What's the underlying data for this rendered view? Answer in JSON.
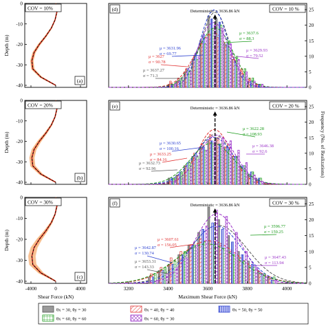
{
  "figure": {
    "left_xlabel": "Shear Force (kN)",
    "left_ylabel": "Depth (m)",
    "right_xlabel": "Maximum Shear Force (kN)",
    "right_ylabel": "Frequency (No. of Realizations)"
  },
  "legend": [
    {
      "label": "θx = 30, θy = 30",
      "color": "#555555",
      "fill": "#999999",
      "pattern": "solid"
    },
    {
      "label": "θx = 40, θy = 40",
      "color": "#e03030",
      "fill": "#ffffff",
      "pattern": "diag-right"
    },
    {
      "label": "θx = 50, θy = 50",
      "color": "#2a3fd0",
      "fill": "#b9bff3",
      "pattern": "vertical"
    },
    {
      "label": "θx = 60, θy = 60",
      "color": "#1a9a1a",
      "fill": "#ffffff",
      "pattern": "grid"
    },
    {
      "label": "θx = 60, θy = 30",
      "color": "#9a30c8",
      "fill": "#ffffff",
      "pattern": "cross"
    }
  ],
  "chart_data": [
    {
      "type": "line",
      "panel": "(a)",
      "cov_label": "COV = 10%",
      "xlim": [
        -5000,
        5000
      ],
      "ylim": [
        -41,
        0
      ],
      "xticks": [
        -4000,
        0,
        4000
      ],
      "yticks": [
        0,
        -10,
        -20,
        -30,
        -40
      ],
      "depth": [
        0,
        -4,
        -8,
        -12,
        -16,
        -20,
        -24,
        -28,
        -32,
        -36,
        -40
      ],
      "mean_shear": [
        0,
        200,
        -100,
        -700,
        -1600,
        -2650,
        -3500,
        -3850,
        -3700,
        -2400,
        0
      ]
    },
    {
      "type": "bar",
      "panel": "(d)",
      "cov_label": "COV = 10 %",
      "deterministic": 3636.86,
      "deterministic_label": "Deterministic = 3636.86 kN",
      "xlim": [
        3100,
        4100
      ],
      "ylim": [
        0,
        27
      ],
      "xticks": [
        3200,
        3400,
        3600,
        3800,
        4000
      ],
      "yticks": [
        0,
        5,
        10,
        15,
        20,
        25
      ],
      "annotations": [
        {
          "series": 2,
          "mu": "μ = 3631.96",
          "sigma": "σ = 69.77"
        },
        {
          "series": 3,
          "mu": "μ = 3637.6",
          "sigma": "σ = 88.3"
        },
        {
          "series": 1,
          "mu": "μ = 3627",
          "sigma": "σ = 90.78"
        },
        {
          "series": 4,
          "mu": "μ = 3629.93",
          "sigma": "σ = 79.52"
        },
        {
          "series": 0,
          "mu": "μ = 3637.27",
          "sigma": "σ = 71.3"
        }
      ],
      "bins": [
        3400,
        3440,
        3480,
        3520,
        3560,
        3600,
        3640,
        3680,
        3720,
        3760,
        3800,
        3840
      ],
      "series": [
        {
          "name": "θx = 30, θy = 30",
          "mean": 3637.27,
          "sd": 71.3,
          "values": [
            1,
            2,
            5,
            9,
            15,
            23,
            22,
            14,
            9,
            5,
            2,
            1
          ]
        },
        {
          "name": "θx = 40, θy = 40",
          "mean": 3627,
          "sd": 90.78,
          "values": [
            2,
            3,
            6,
            10,
            14,
            17,
            16,
            13,
            9,
            6,
            3,
            1
          ]
        },
        {
          "name": "θx = 50, θy = 50",
          "mean": 3631.96,
          "sd": 69.77,
          "values": [
            1,
            2,
            6,
            11,
            17,
            22,
            21,
            14,
            8,
            4,
            2,
            1
          ]
        },
        {
          "name": "θx = 60, θy = 60",
          "mean": 3637.6,
          "sd": 88.3,
          "values": [
            1,
            3,
            5,
            9,
            14,
            19,
            20,
            15,
            10,
            6,
            3,
            1
          ]
        },
        {
          "name": "θx = 60, θy = 30",
          "mean": 3629.93,
          "sd": 79.52,
          "values": [
            1,
            2,
            5,
            10,
            16,
            20,
            19,
            14,
            9,
            5,
            2,
            1
          ]
        }
      ]
    },
    {
      "type": "line",
      "panel": "(b)",
      "cov_label": "COV = 20%",
      "xlim": [
        -5000,
        5000
      ],
      "ylim": [
        -41,
        0
      ],
      "xticks": [
        -4000,
        0,
        4000
      ],
      "yticks": [
        0,
        -10,
        -20,
        -30,
        -40
      ],
      "depth": [
        0,
        -4,
        -8,
        -12,
        -16,
        -20,
        -24,
        -28,
        -32,
        -36,
        -40
      ],
      "mean_shear": [
        0,
        200,
        -100,
        -700,
        -1600,
        -2650,
        -3500,
        -3850,
        -3700,
        -2400,
        0
      ]
    },
    {
      "type": "bar",
      "panel": "(e)",
      "cov_label": "COV = 20 %",
      "deterministic": 3636.86,
      "deterministic_label": "Deterministic = 3636.86 kN",
      "xlim": [
        3100,
        4100
      ],
      "ylim": [
        0,
        27
      ],
      "xticks": [
        3200,
        3400,
        3600,
        3800,
        4000
      ],
      "yticks": [
        0,
        5,
        10,
        15,
        20,
        25
      ],
      "annotations": [
        {
          "series": 2,
          "mu": "μ = 3630.65",
          "sigma": "σ = 100.16"
        },
        {
          "series": 3,
          "mu": "μ = 3622.28",
          "sigma": "σ = 108.93"
        },
        {
          "series": 1,
          "mu": "μ = 3633.25",
          "sigma": "σ = 84.16"
        },
        {
          "series": 4,
          "mu": "μ = 3646.38",
          "sigma": "σ = 92.6"
        },
        {
          "series": 0,
          "mu": "μ = 3632.73",
          "sigma": "σ = 92.96"
        }
      ],
      "bins": [
        3400,
        3440,
        3480,
        3520,
        3560,
        3600,
        3640,
        3680,
        3720,
        3760,
        3800,
        3840
      ],
      "series": [
        {
          "name": "θx = 30, θy = 30",
          "mean": 3632.73,
          "sd": 92.96,
          "values": [
            2,
            3,
            6,
            9,
            12,
            14,
            15,
            12,
            9,
            6,
            3,
            2
          ]
        },
        {
          "name": "θx = 40, θy = 40",
          "mean": 3633.25,
          "sd": 84.16,
          "values": [
            1,
            3,
            6,
            10,
            13,
            16,
            15,
            12,
            9,
            5,
            2,
            1
          ]
        },
        {
          "name": "θx = 50, θy = 50",
          "mean": 3630.65,
          "sd": 100.16,
          "values": [
            2,
            4,
            7,
            10,
            12,
            14,
            13,
            12,
            9,
            6,
            4,
            2
          ]
        },
        {
          "name": "θx = 60, θy = 60",
          "mean": 3622.28,
          "sd": 108.93,
          "values": [
            2,
            4,
            7,
            9,
            11,
            13,
            13,
            11,
            9,
            6,
            4,
            2
          ]
        },
        {
          "name": "θx = 60, θy = 30",
          "mean": 3646.38,
          "sd": 92.6,
          "values": [
            1,
            2,
            5,
            8,
            11,
            14,
            15,
            14,
            11,
            7,
            3,
            1
          ]
        }
      ]
    },
    {
      "type": "line",
      "panel": "(c)",
      "cov_label": "COV = 30%",
      "xlim": [
        -5000,
        5000
      ],
      "ylim": [
        -41,
        0
      ],
      "xticks": [
        -4000,
        0,
        4000
      ],
      "yticks": [
        0,
        -10,
        -20,
        -30,
        -40
      ],
      "depth": [
        0,
        -4,
        -8,
        -12,
        -16,
        -20,
        -24,
        -28,
        -32,
        -36,
        -40
      ],
      "mean_shear": [
        0,
        200,
        -100,
        -700,
        -1600,
        -2650,
        -3500,
        -3850,
        -3700,
        -2400,
        0
      ]
    },
    {
      "type": "bar",
      "panel": "(f)",
      "cov_label": "COV = 30 %",
      "deterministic": 3636.86,
      "deterministic_label": "Deterministic = 3636.86 kN",
      "xlim": [
        3100,
        4100
      ],
      "ylim": [
        0,
        27
      ],
      "xticks": [
        3200,
        3400,
        3600,
        3800,
        4000
      ],
      "yticks": [
        0,
        5,
        10,
        15,
        20,
        25
      ],
      "annotations": [
        {
          "series": 1,
          "mu": "μ = 3607.61",
          "sigma": "σ = 156.05"
        },
        {
          "series": 3,
          "mu": "μ = 3596.77",
          "sigma": "σ = 159.25"
        },
        {
          "series": 2,
          "mu": "μ = 3642.87",
          "sigma": "σ = 130.74"
        },
        {
          "series": 4,
          "mu": "μ = 3647.43",
          "sigma": "σ = 113.94"
        },
        {
          "series": 0,
          "mu": "μ = 3653.31",
          "sigma": "σ = 143.33"
        }
      ],
      "bins": [
        3300,
        3350,
        3400,
        3450,
        3500,
        3550,
        3600,
        3650,
        3700,
        3750,
        3800,
        3850,
        3900
      ],
      "series": [
        {
          "name": "θx = 30, θy = 30",
          "mean": 3653.31,
          "sd": 143.33,
          "values": [
            2,
            4,
            6,
            9,
            12,
            16,
            24,
            20,
            15,
            10,
            7,
            4,
            2
          ]
        },
        {
          "name": "θx = 40, θy = 40",
          "mean": 3607.61,
          "sd": 156.05,
          "values": [
            3,
            5,
            8,
            10,
            12,
            14,
            13,
            12,
            10,
            8,
            5,
            3,
            2
          ]
        },
        {
          "name": "θx = 50, θy = 50",
          "mean": 3642.87,
          "sd": 130.74,
          "values": [
            2,
            4,
            6,
            9,
            12,
            17,
            19,
            17,
            13,
            9,
            6,
            3,
            1
          ]
        },
        {
          "name": "θx = 60, θy = 60",
          "mean": 3596.77,
          "sd": 159.25,
          "values": [
            3,
            5,
            7,
            10,
            12,
            13,
            12,
            11,
            9,
            7,
            5,
            3,
            2
          ]
        },
        {
          "name": "θx = 60, θy = 30",
          "mean": 3647.43,
          "sd": 113.94,
          "values": [
            1,
            3,
            5,
            8,
            12,
            18,
            23,
            21,
            16,
            10,
            5,
            2,
            1
          ]
        }
      ]
    }
  ]
}
